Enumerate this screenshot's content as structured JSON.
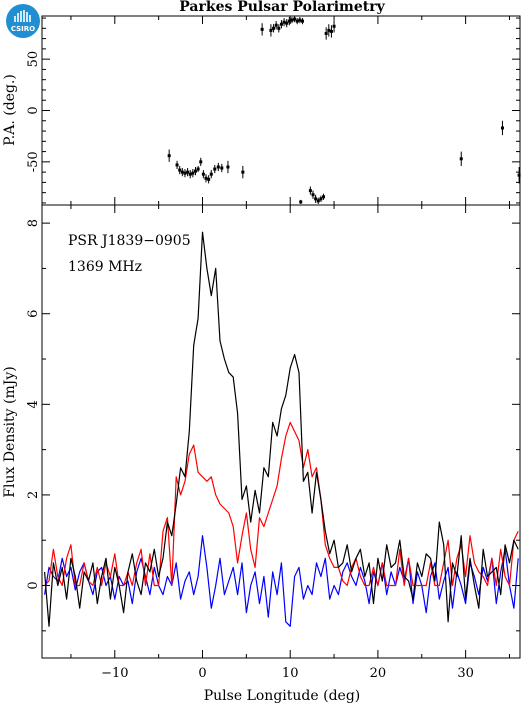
{
  "header": {
    "title": "Parkes Pulsar Polarimetry",
    "logo_text": "CSIRO"
  },
  "colors": {
    "total_intensity": "#000000",
    "linear": "#ff0000",
    "circular": "#0000ff",
    "logo_bg": "#1f8fd1"
  },
  "chart_data": [
    {
      "type": "scatter",
      "panel": "position-angle",
      "ylabel": "P.A. (deg.)",
      "xlim": [
        -18.3,
        36.2
      ],
      "ylim": [
        -92,
        92
      ],
      "yticks": [
        -50,
        0,
        50
      ],
      "xticks": [
        -10,
        0,
        10,
        20,
        30
      ],
      "grid": false,
      "points": [
        {
          "x": -3.8,
          "y": -44,
          "err": 6
        },
        {
          "x": -2.9,
          "y": -53,
          "err": 4
        },
        {
          "x": -2.6,
          "y": -58,
          "err": 4
        },
        {
          "x": -2.3,
          "y": -60,
          "err": 4
        },
        {
          "x": -2.0,
          "y": -61,
          "err": 4
        },
        {
          "x": -1.7,
          "y": -60,
          "err": 4
        },
        {
          "x": -1.4,
          "y": -62,
          "err": 4
        },
        {
          "x": -1.1,
          "y": -61,
          "err": 4
        },
        {
          "x": -0.8,
          "y": -59,
          "err": 4
        },
        {
          "x": -0.5,
          "y": -57,
          "err": 3
        },
        {
          "x": -0.2,
          "y": -50,
          "err": 4
        },
        {
          "x": 0.1,
          "y": -62,
          "err": 4
        },
        {
          "x": 0.4,
          "y": -66,
          "err": 4
        },
        {
          "x": 0.7,
          "y": -67,
          "err": 4
        },
        {
          "x": 1.0,
          "y": -62,
          "err": 4
        },
        {
          "x": 1.4,
          "y": -57,
          "err": 4
        },
        {
          "x": 1.8,
          "y": -55,
          "err": 4
        },
        {
          "x": 2.2,
          "y": -56,
          "err": 4
        },
        {
          "x": 2.9,
          "y": -55,
          "err": 6
        },
        {
          "x": 4.6,
          "y": -60,
          "err": 6
        },
        {
          "x": 6.8,
          "y": 79,
          "err": 6
        },
        {
          "x": 7.8,
          "y": 78,
          "err": 6
        },
        {
          "x": 8.1,
          "y": 80,
          "err": 4
        },
        {
          "x": 8.4,
          "y": 83,
          "err": 4
        },
        {
          "x": 8.7,
          "y": 80,
          "err": 4
        },
        {
          "x": 9.0,
          "y": 84,
          "err": 4
        },
        {
          "x": 9.3,
          "y": 86,
          "err": 4
        },
        {
          "x": 9.6,
          "y": 85,
          "err": 4
        },
        {
          "x": 9.9,
          "y": 87,
          "err": 4
        },
        {
          "x": 10.2,
          "y": 88,
          "err": 3
        },
        {
          "x": 10.5,
          "y": 89,
          "err": 3
        },
        {
          "x": 10.8,
          "y": 87,
          "err": 3
        },
        {
          "x": 11.1,
          "y": 88,
          "err": 3
        },
        {
          "x": 11.4,
          "y": 87,
          "err": 3
        },
        {
          "x": 11.2,
          "y": -89,
          "err": 2
        },
        {
          "x": 12.3,
          "y": -78,
          "err": 4
        },
        {
          "x": 12.6,
          "y": -82,
          "err": 4
        },
        {
          "x": 12.9,
          "y": -86,
          "err": 4
        },
        {
          "x": 13.2,
          "y": -88,
          "err": 3
        },
        {
          "x": 13.5,
          "y": -86,
          "err": 3
        },
        {
          "x": 13.8,
          "y": -84,
          "err": 3
        },
        {
          "x": 14.1,
          "y": 75,
          "err": 6
        },
        {
          "x": 14.4,
          "y": 78,
          "err": 6
        },
        {
          "x": 14.7,
          "y": 77,
          "err": 6
        },
        {
          "x": 15.0,
          "y": 82,
          "err": 6
        },
        {
          "x": 29.5,
          "y": -47,
          "err": 7
        },
        {
          "x": 34.2,
          "y": -17,
          "err": 7
        },
        {
          "x": 36.1,
          "y": -63,
          "err": 8
        }
      ]
    },
    {
      "type": "line",
      "panel": "profile",
      "xlabel": "Pulse Longitude (deg)",
      "ylabel": "Flux Density (mJy)",
      "annotations": [
        "PSR J1839−0905",
        "1369 MHz"
      ],
      "xlim": [
        -18.3,
        36.2
      ],
      "ylim": [
        -1.6,
        8.4
      ],
      "xticks": [
        -10,
        0,
        10,
        20,
        30
      ],
      "yticks": [
        0,
        2,
        4,
        6,
        8
      ],
      "grid": false,
      "x": [
        -18.0,
        -17.5,
        -17.0,
        -16.5,
        -16.0,
        -15.5,
        -15.0,
        -14.5,
        -14.0,
        -13.5,
        -13.0,
        -12.5,
        -12.0,
        -11.5,
        -11.0,
        -10.5,
        -10.0,
        -9.5,
        -9.0,
        -8.5,
        -8.0,
        -7.5,
        -7.0,
        -6.5,
        -6.0,
        -5.5,
        -5.0,
        -4.5,
        -4.0,
        -3.5,
        -3.0,
        -2.5,
        -2.0,
        -1.5,
        -1.0,
        -0.5,
        0.0,
        0.5,
        1.0,
        1.5,
        2.0,
        2.5,
        3.0,
        3.5,
        4.0,
        4.5,
        5.0,
        5.5,
        6.0,
        6.5,
        7.0,
        7.5,
        8.0,
        8.5,
        9.0,
        9.5,
        10.0,
        10.5,
        11.0,
        11.5,
        12.0,
        12.5,
        13.0,
        13.5,
        14.0,
        14.5,
        15.0,
        15.5,
        16.0,
        16.5,
        17.0,
        17.5,
        18.0,
        18.5,
        19.0,
        19.5,
        20.0,
        20.5,
        21.0,
        21.5,
        22.0,
        22.5,
        23.0,
        23.5,
        24.0,
        24.5,
        25.0,
        25.5,
        26.0,
        26.5,
        27.0,
        27.5,
        28.0,
        28.5,
        29.0,
        29.5,
        30.0,
        30.5,
        31.0,
        31.5,
        32.0,
        32.5,
        33.0,
        33.5,
        34.0,
        34.5,
        35.0,
        35.5,
        36.0
      ],
      "series": [
        {
          "color": "#000000",
          "values": [
            0.3,
            -0.9,
            0.5,
            0.0,
            0.4,
            -0.3,
            0.6,
            0.2,
            -0.5,
            0.3,
            0.1,
            0.5,
            -0.4,
            0.2,
            0.6,
            -0.3,
            0.4,
            0.0,
            -0.6,
            0.3,
            0.7,
            0.1,
            -0.2,
            0.5,
            0.3,
            0.8,
            0.2,
            0.6,
            1.4,
            1.1,
            1.8,
            2.6,
            2.4,
            3.4,
            5.3,
            5.9,
            7.8,
            7.0,
            6.4,
            7.0,
            5.4,
            5.0,
            4.7,
            4.6,
            3.8,
            1.9,
            2.2,
            1.4,
            2.1,
            1.6,
            2.6,
            2.4,
            3.6,
            3.3,
            3.9,
            4.2,
            4.8,
            5.1,
            4.7,
            2.3,
            2.5,
            1.6,
            2.5,
            1.9,
            1.2,
            0.7,
            1.0,
            0.4,
            0.5,
            0.9,
            0.3,
            0.6,
            0.8,
            0.2,
            0.5,
            -0.4,
            0.6,
            0.1,
            0.9,
            0.4,
            0.5,
            1.0,
            0.2,
            0.1,
            -0.3,
            0.5,
            0.2,
            0.7,
            0.6,
            0.1,
            1.4,
            0.9,
            -0.8,
            0.5,
            0.2,
            1.1,
            -0.3,
            0.6,
            0.0,
            -0.5,
            0.8,
            0.2,
            0.3,
            0.4,
            -0.2,
            0.9,
            0.5,
            1.0,
            0.8
          ]
        },
        {
          "color": "#ff0000",
          "values": [
            0.0,
            0.1,
            0.8,
            0.2,
            0.0,
            0.6,
            0.9,
            0.0,
            0.0,
            0.5,
            0.1,
            0.0,
            0.4,
            0.0,
            0.5,
            0.2,
            0.7,
            0.0,
            0.0,
            0.3,
            0.0,
            0.5,
            0.8,
            0.0,
            0.7,
            0.0,
            0.0,
            1.2,
            1.5,
            0.0,
            2.4,
            2.0,
            2.3,
            2.9,
            3.1,
            2.5,
            2.4,
            2.3,
            2.4,
            2.0,
            1.8,
            1.7,
            1.6,
            1.3,
            0.5,
            1.1,
            1.6,
            0.8,
            0.4,
            1.5,
            1.3,
            1.6,
            1.9,
            2.2,
            2.8,
            3.3,
            3.6,
            3.4,
            3.2,
            2.6,
            3.0,
            2.4,
            2.6,
            1.9,
            0.9,
            0.6,
            0.4,
            0.4,
            0.1,
            0.0,
            0.4,
            0.6,
            0.2,
            0.0,
            0.0,
            0.4,
            0.0,
            0.5,
            0.0,
            0.0,
            0.0,
            0.8,
            0.0,
            0.6,
            0.0,
            0.0,
            0.0,
            0.0,
            0.5,
            0.0,
            0.0,
            0.5,
            1.0,
            0.0,
            0.6,
            0.9,
            0.2,
            1.1,
            0.5,
            0.3,
            0.2,
            0.0,
            0.6,
            0.0,
            0.8,
            0.2,
            0.0,
            1.0,
            1.2
          ]
        },
        {
          "color": "#0000ff",
          "values": [
            -0.2,
            0.4,
            0.2,
            0.1,
            0.6,
            0.2,
            0.4,
            -0.1,
            0.3,
            0.5,
            0.1,
            -0.2,
            0.3,
            0.4,
            0.0,
            0.2,
            -0.3,
            0.2,
            0.0,
            0.1,
            -0.4,
            0.3,
            0.6,
            0.2,
            -0.2,
            0.4,
            0.0,
            -0.2,
            0.2,
            0.0,
            0.5,
            -0.3,
            0.1,
            0.3,
            -0.2,
            0.2,
            1.1,
            0.4,
            -0.5,
            0.0,
            0.6,
            -0.2,
            0.1,
            0.4,
            -0.2,
            0.5,
            -0.6,
            0.0,
            0.3,
            -0.4,
            0.2,
            -0.7,
            0.3,
            -0.2,
            0.5,
            -0.8,
            -0.9,
            0.2,
            0.4,
            -0.3,
            0.0,
            -0.2,
            0.5,
            0.2,
            0.6,
            -0.3,
            0.0,
            -0.2,
            0.3,
            0.5,
            0.2,
            0.0,
            0.4,
            0.1,
            -0.4,
            0.3,
            0.0,
            0.5,
            -0.2,
            0.3,
            0.0,
            0.4,
            0.1,
            0.6,
            -0.4,
            0.3,
            0.0,
            -0.6,
            0.2,
            0.5,
            -0.3,
            0.1,
            0.4,
            -0.5,
            0.3,
            0.0,
            -0.4,
            0.5,
            0.2,
            -0.2,
            0.4,
            0.1,
            0.6,
            -0.4,
            0.3,
            0.8,
            0.0,
            -0.5,
            0.6
          ]
        }
      ]
    }
  ]
}
